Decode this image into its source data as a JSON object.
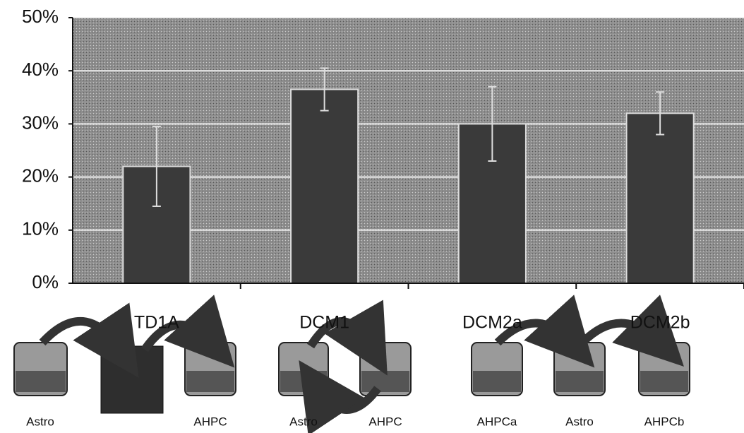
{
  "chart_data": {
    "type": "bar",
    "categories": [
      "TD1A",
      "DCM1",
      "DCM2a",
      "DCM2b"
    ],
    "values": [
      22,
      36.5,
      30,
      32
    ],
    "errors": [
      7.5,
      4,
      7,
      4
    ],
    "color": "#3a3a3a",
    "background": "#8e8e8e",
    "ylim": [
      0,
      50
    ],
    "yticks": [
      {
        "value": 0,
        "label": "0%"
      },
      {
        "value": 10,
        "label": "10%"
      },
      {
        "value": 20,
        "label": "20%"
      },
      {
        "value": 30,
        "label": "30%"
      },
      {
        "value": 40,
        "label": "40%"
      },
      {
        "value": 50,
        "label": "50%"
      }
    ],
    "grid": true,
    "annotations": [
      "Astro",
      "AHPC",
      "Astro",
      "AHPC",
      "AHPCa",
      "Astro",
      "AHPCb"
    ]
  }
}
